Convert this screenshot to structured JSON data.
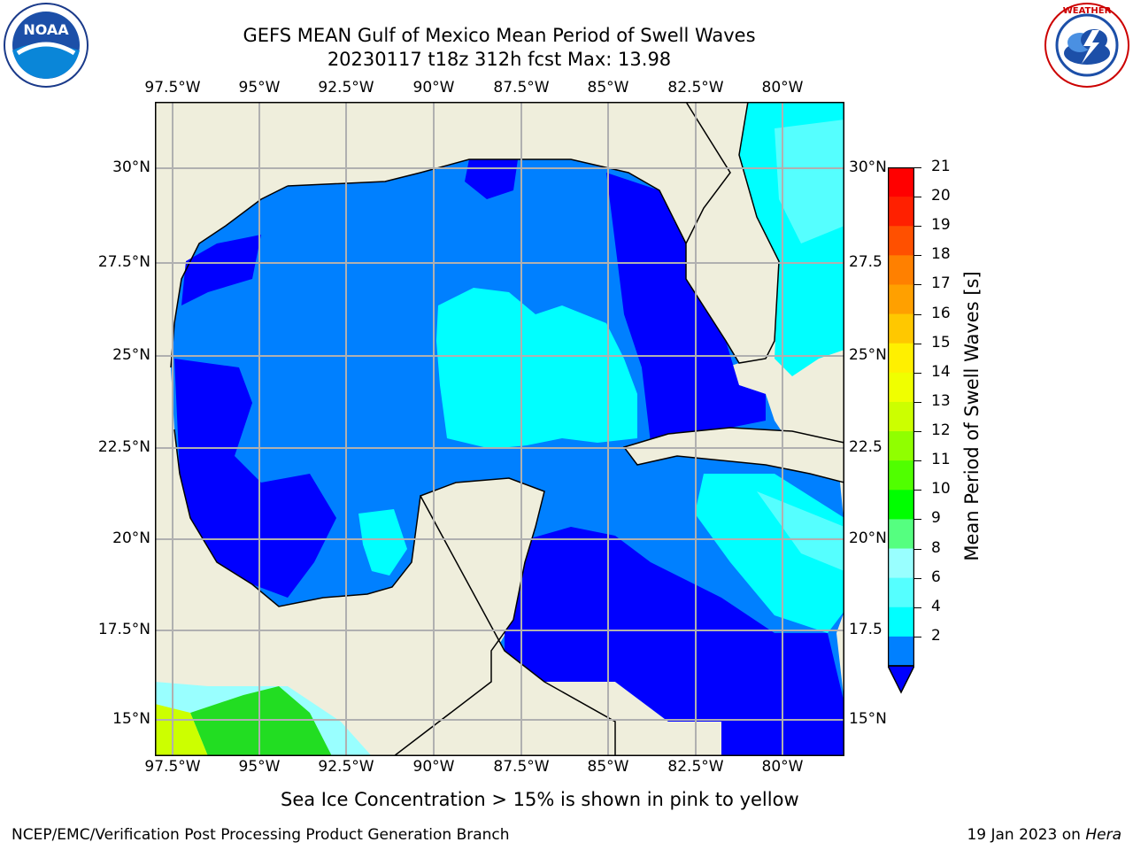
{
  "header": {
    "title_line1": "GEFS MEAN Gulf of Mexico Mean Period of Swell Waves",
    "title_line2": "20230117 t18z 312h fcst   Max: 13.98",
    "left_logo": "noaa-logo",
    "right_logo": "national-weather-service-logo"
  },
  "map": {
    "lon_ticks": [
      "97.5°W",
      "95°W",
      "92.5°W",
      "90°W",
      "87.5°W",
      "85°W",
      "82.5°W",
      "80°W"
    ],
    "lat_ticks": [
      "30°N",
      "27.5°N",
      "25°N",
      "22.5°N",
      "20°N",
      "17.5°N",
      "15°N"
    ],
    "right_lat_ticks": [
      "30°N",
      "27.5",
      "25°N",
      "22.5",
      "20°N",
      "17.5",
      "15°N"
    ],
    "colors": {
      "land": "#efeedc",
      "c2": "#0000ff",
      "c4": "#0080ff",
      "c6": "#00ffff",
      "c8": "#55ffff",
      "c9": "#99ffff",
      "green": "#22dd22",
      "yellowgreen": "#ccff00",
      "grid": "#b0b0b0"
    }
  },
  "colorbar": {
    "label": "Mean Period of Swell Waves [s]",
    "ticks": [
      "21",
      "20",
      "19",
      "18",
      "17",
      "16",
      "15",
      "14",
      "13",
      "12",
      "11",
      "10",
      "9",
      "8",
      "6",
      "4",
      "2"
    ],
    "colors": [
      "#ff0000",
      "#ff2000",
      "#ff5000",
      "#ff8000",
      "#ffa000",
      "#ffc800",
      "#fff000",
      "#f0ff00",
      "#ccff00",
      "#90ff00",
      "#50ff00",
      "#00ff00",
      "#55ff80",
      "#99ffff",
      "#55ffff",
      "#00ffff",
      "#0080ff"
    ]
  },
  "footer": {
    "note": "Sea Ice Concentration > 15% is shown in pink to yellow",
    "left": "NCEP/EMC/Verification Post Processing Product Generation Branch",
    "right_prefix": "19 Jan 2023 on ",
    "right_machine": "Hera"
  }
}
